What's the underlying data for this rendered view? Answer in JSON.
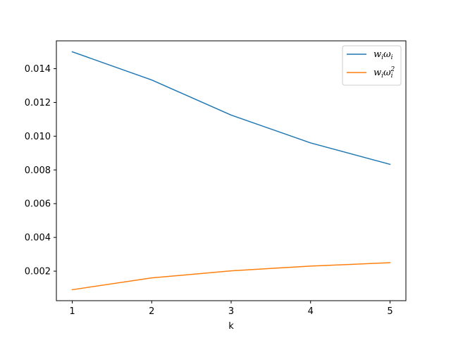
{
  "chart_data": {
    "type": "line",
    "title": "",
    "xlabel": "k",
    "ylabel": "",
    "x": [
      1,
      2,
      3,
      4,
      5
    ],
    "xlim": [
      0.8,
      5.2
    ],
    "ylim": [
      0.00025,
      0.01565
    ],
    "xticks": [
      1,
      2,
      3,
      4,
      5
    ],
    "xtick_labels": [
      "1",
      "2",
      "3",
      "4",
      "5"
    ],
    "yticks": [
      0.002,
      0.004,
      0.006,
      0.008,
      0.01,
      0.012,
      0.014
    ],
    "ytick_labels": [
      "0.002",
      "0.004",
      "0.006",
      "0.008",
      "0.010",
      "0.012",
      "0.014"
    ],
    "grid": false,
    "legend": "top-right",
    "series": [
      {
        "name": "wᵢωᵢ",
        "label_base": "w",
        "label_sub1": "i",
        "label_mid": "ω",
        "label_sub2": "i",
        "label_sup": "",
        "color": "#1f77b4",
        "values": [
          0.015,
          0.01333,
          0.01125,
          0.0096,
          0.00833
        ]
      },
      {
        "name": "wᵢωᵢ²",
        "label_base": "w",
        "label_sub1": "i",
        "label_mid": "ω",
        "label_sub2": "i",
        "label_sup": "2",
        "color": "#ff7f0e",
        "values": [
          0.0009,
          0.0016,
          0.00202,
          0.0023,
          0.0025
        ]
      }
    ]
  }
}
